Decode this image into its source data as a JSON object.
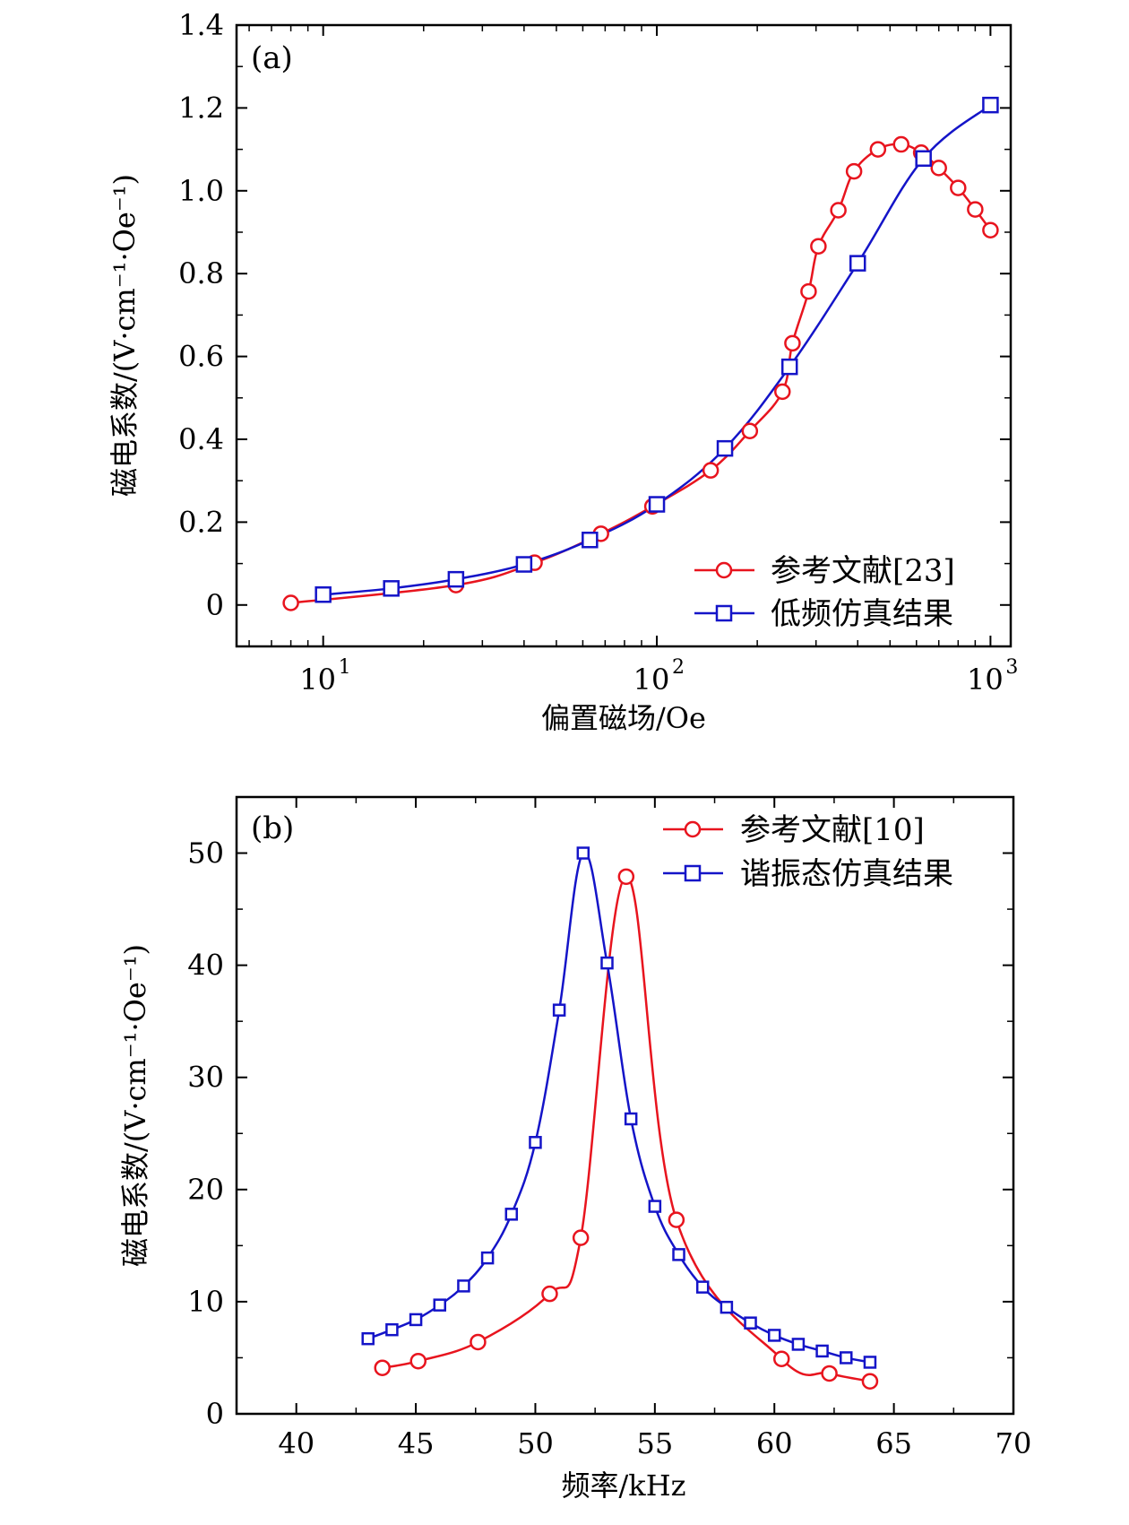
{
  "chart_data": [
    {
      "type": "line",
      "panel_label": "(a)",
      "xscale": "log",
      "xlim": [
        5.5,
        1150
      ],
      "ylim": [
        -0.1,
        1.4
      ],
      "xlabel": "偏置磁场/Oe",
      "ylabel": "磁电系数/(V·cm⁻¹·Oe⁻¹)",
      "xticks": [
        {
          "value": 10,
          "base": "10",
          "exp": "1"
        },
        {
          "value": 100,
          "base": "10",
          "exp": "2"
        },
        {
          "value": 1000,
          "base": "10",
          "exp": "3"
        }
      ],
      "yticks": [
        {
          "value": 0,
          "label": "0"
        },
        {
          "value": 0.2,
          "label": "0.2"
        },
        {
          "value": 0.4,
          "label": "0.4"
        },
        {
          "value": 0.6,
          "label": "0.6"
        },
        {
          "value": 0.8,
          "label": "0.8"
        },
        {
          "value": 1.0,
          "label": "1.0"
        },
        {
          "value": 1.2,
          "label": "1.2"
        },
        {
          "value": 1.4,
          "label": "1.4"
        }
      ],
      "legend_position": "bottom-right",
      "series": [
        {
          "name": "参考文献[23]",
          "color": "#e8141e",
          "marker": "circle",
          "x": [
            8,
            25,
            43,
            68,
            97,
            145,
            190,
            238,
            255,
            285,
            305,
            350,
            390,
            460,
            540,
            620,
            700,
            800,
            900,
            1000
          ],
          "y": [
            0.005,
            0.048,
            0.102,
            0.172,
            0.238,
            0.325,
            0.42,
            0.515,
            0.632,
            0.757,
            0.866,
            0.953,
            1.047,
            1.1,
            1.112,
            1.092,
            1.055,
            1.007,
            0.955,
            0.905
          ]
        },
        {
          "name": "低频仿真结果",
          "color": "#1414c8",
          "marker": "square",
          "x": [
            10,
            16,
            25,
            40,
            63,
            100,
            160,
            250,
            400,
            630,
            1000
          ],
          "y": [
            0.025,
            0.04,
            0.062,
            0.098,
            0.157,
            0.243,
            0.378,
            0.575,
            0.825,
            1.078,
            1.207
          ]
        }
      ]
    },
    {
      "type": "line",
      "panel_label": "(b)",
      "xscale": "linear",
      "xlim": [
        37.5,
        70
      ],
      "ylim": [
        0,
        55
      ],
      "xlabel": "频率/kHz",
      "ylabel": "磁电系数/(V·cm⁻¹·Oe⁻¹)",
      "xticks": [
        {
          "value": 40,
          "label": "40"
        },
        {
          "value": 45,
          "label": "45"
        },
        {
          "value": 50,
          "label": "50"
        },
        {
          "value": 55,
          "label": "55"
        },
        {
          "value": 60,
          "label": "60"
        },
        {
          "value": 65,
          "label": "65"
        },
        {
          "value": 70,
          "label": "70"
        }
      ],
      "yticks": [
        {
          "value": 0,
          "label": "0"
        },
        {
          "value": 10,
          "label": "10"
        },
        {
          "value": 20,
          "label": "20"
        },
        {
          "value": 30,
          "label": "30"
        },
        {
          "value": 40,
          "label": "40"
        },
        {
          "value": 50,
          "label": "50"
        }
      ],
      "legend_position": "top-right",
      "series": [
        {
          "name": "参考文献[10]",
          "color": "#e8141e",
          "marker": "circle",
          "x": [
            43.6,
            45.1,
            47.6,
            50.6,
            51.9,
            53.8,
            55.9,
            60.3,
            62.3,
            64.0
          ],
          "y": [
            4.1,
            4.7,
            6.4,
            10.7,
            15.7,
            47.9,
            17.3,
            4.9,
            3.6,
            2.9
          ]
        },
        {
          "name": "谐振态仿真结果",
          "color": "#1414c8",
          "marker": "square",
          "x": [
            43,
            44,
            45,
            46,
            47,
            48,
            49,
            50,
            51,
            52,
            53,
            54,
            55,
            56,
            57,
            58,
            59,
            60,
            61,
            62,
            63,
            64
          ],
          "y": [
            6.7,
            7.5,
            8.4,
            9.7,
            11.4,
            13.9,
            17.8,
            24.2,
            36.0,
            50.0,
            40.2,
            26.3,
            18.5,
            14.2,
            11.3,
            9.5,
            8.1,
            7.0,
            6.2,
            5.6,
            5.0,
            4.6
          ]
        }
      ]
    }
  ]
}
